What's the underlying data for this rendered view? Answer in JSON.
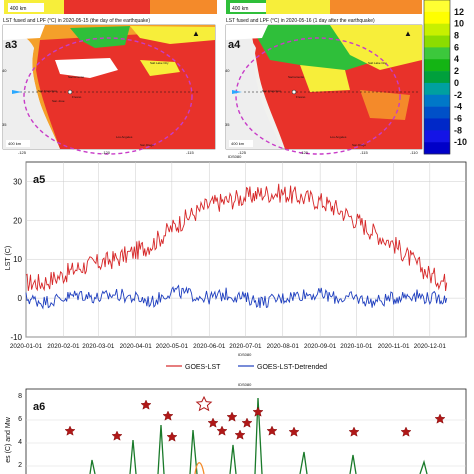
{
  "maps": {
    "a3": {
      "label": "a3",
      "title": "LST fused and LPF (°C) in 2020-05-15 (the day of the earthquake)",
      "scale": "400 km",
      "lon_ticks": [
        "-125",
        "-120",
        "-115"
      ],
      "lat_ticks": [
        "40",
        "35"
      ],
      "places": [
        "Sacramento",
        "San Francisco",
        "Fresno",
        "San Jose",
        "Salt Lake City",
        "Los Angeles",
        "San Diego"
      ]
    },
    "a4": {
      "label": "a4",
      "title": "LST fused and LPF (°C) in 2020-05-16 (1 day after the earthquake)",
      "scale": "400 km",
      "lon_ticks": [
        "-125",
        "-120",
        "-115",
        "-110"
      ],
      "lat_ticks": [
        "40",
        "35"
      ],
      "places": [
        "Sacramento",
        "San Francisco",
        "Fresno",
        "Salt Lake City",
        "Los Angeles",
        "San Diego"
      ]
    },
    "top_scale": [
      "400 km",
      "400 km"
    ],
    "credit": "IDS080",
    "colors": {
      "hot": "#e8322a",
      "warm": "#f48a2a",
      "yellow": "#f7ee3a",
      "green": "#2fbf3a",
      "cloud": "#ffffff",
      "circle": "#c83cc8",
      "marker": "#2aa8ff"
    }
  },
  "colorbar": {
    "labels": [
      "12",
      "10",
      "8",
      "6",
      "4",
      "2",
      "0",
      "-2",
      "-4",
      "-6",
      "-8",
      "-10"
    ],
    "colors": [
      "#ffff33",
      "#ffff00",
      "#c8f000",
      "#8cdc00",
      "#3cc83c",
      "#14b414",
      "#00a03c",
      "#00a0a0",
      "#0078c8",
      "#0050c8",
      "#0028c8",
      "#1414e6",
      "#0000c8"
    ]
  },
  "credit_a5": "IDS080",
  "legend": {
    "lst": "GOES-LST",
    "detrended": "GOES-LST-Detrended"
  },
  "a6_label": "a6",
  "a6_ylabel": "es (C) and Mw",
  "a6_yticks": [
    "8",
    "6",
    "4",
    "2"
  ],
  "chart_data": {
    "type": "line",
    "panel_label": "a5",
    "ylabel": "LST (C)",
    "xlabel": "",
    "ylim": [
      -10,
      35
    ],
    "yticks": [
      -10,
      0,
      10,
      20,
      30
    ],
    "grid": true,
    "legend_position": "bottom",
    "x_ticks": [
      "2020-01-01",
      "2020-02-01",
      "2020-03-01",
      "2020-04-01",
      "2020-05-01",
      "2020-06-01",
      "2020-07-01",
      "2020-08-01",
      "2020-09-01",
      "2020-10-01",
      "2020-11-01",
      "2020-12-01"
    ],
    "series": [
      {
        "name": "GOES-LST",
        "color": "#d62728",
        "x": [
          "2020-01-01",
          "2020-01-15",
          "2020-02-01",
          "2020-02-15",
          "2020-03-01",
          "2020-03-15",
          "2020-04-01",
          "2020-04-15",
          "2020-05-01",
          "2020-05-15",
          "2020-06-01",
          "2020-06-15",
          "2020-07-01",
          "2020-07-15",
          "2020-08-01",
          "2020-08-15",
          "2020-09-01",
          "2020-09-15",
          "2020-10-01",
          "2020-10-15",
          "2020-11-01",
          "2020-11-15",
          "2020-12-01",
          "2020-12-15"
        ],
        "values": [
          4,
          4,
          6,
          8,
          9,
          10,
          12,
          14,
          18,
          21,
          24,
          25,
          26,
          27,
          27,
          26,
          25,
          23,
          20,
          17,
          14,
          10,
          6,
          4
        ]
      },
      {
        "name": "GOES-LST-Detrended",
        "color": "#1f3fbf",
        "x": [
          "2020-01-01",
          "2020-01-15",
          "2020-02-01",
          "2020-02-15",
          "2020-03-01",
          "2020-03-15",
          "2020-04-01",
          "2020-04-15",
          "2020-05-01",
          "2020-05-15",
          "2020-06-01",
          "2020-06-15",
          "2020-07-01",
          "2020-07-15",
          "2020-08-01",
          "2020-08-15",
          "2020-09-01",
          "2020-09-15",
          "2020-10-01",
          "2020-10-15",
          "2020-11-01",
          "2020-11-15",
          "2020-12-01",
          "2020-12-15"
        ],
        "values": [
          0,
          -1,
          0,
          1,
          0,
          1,
          0,
          -1,
          2,
          1,
          0,
          1,
          0,
          -1,
          0,
          1,
          1,
          0,
          0,
          -1,
          0,
          1,
          0,
          0
        ]
      }
    ]
  }
}
